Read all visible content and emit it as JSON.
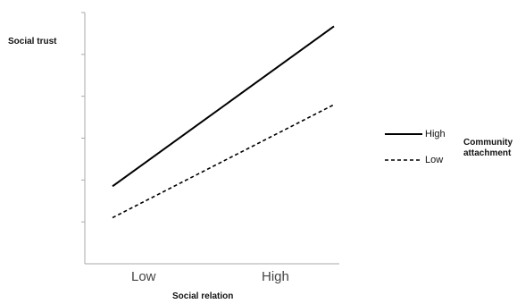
{
  "chart_data": {
    "type": "line",
    "title": "",
    "xlabel": "Social relation",
    "ylabel": "Social trust",
    "categories": [
      "Low",
      "High"
    ],
    "ylim": [
      0,
      6
    ],
    "yticks": [
      1,
      2,
      3,
      4,
      5,
      6
    ],
    "grid": false,
    "legend": {
      "title_lines": [
        "Community",
        "attachment"
      ],
      "placement": "right"
    },
    "series": [
      {
        "name": "High",
        "values": [
          1.85,
          5.67
        ],
        "line_style": "solid",
        "color": "#000000"
      },
      {
        "name": "Low",
        "values": [
          1.1,
          3.8
        ],
        "line_style": "dashed",
        "color": "#000000"
      }
    ]
  }
}
